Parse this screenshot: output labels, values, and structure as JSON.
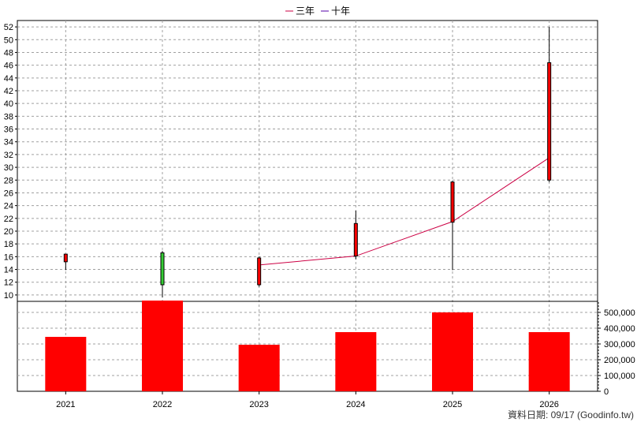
{
  "chart_data": {
    "type": "candlestick+line+bar",
    "legend": {
      "placement": "top-center",
      "entries": [
        {
          "label": "三年",
          "color": "#cc0044"
        },
        {
          "label": "十年",
          "color": "#5500aa"
        }
      ]
    },
    "categories": [
      "2021",
      "2022",
      "2023",
      "2024",
      "2025",
      "2026"
    ],
    "price_axis": {
      "range": [
        9,
        53
      ],
      "ticks": [
        10,
        12,
        14,
        16,
        18,
        20,
        22,
        24,
        26,
        28,
        30,
        32,
        34,
        36,
        38,
        40,
        42,
        44,
        46,
        48,
        50,
        52
      ],
      "position": "left"
    },
    "volume_axis": {
      "range": [
        0,
        570000
      ],
      "ticks": [
        0,
        100000,
        200000,
        300000,
        400000,
        500000
      ],
      "tick_labels": [
        "0",
        "100,000",
        "200,000",
        "300,000",
        "400,000",
        "500,000"
      ],
      "position": "right"
    },
    "candles": [
      {
        "x": "2021",
        "open": 15.2,
        "close": 16.4,
        "high": 16.4,
        "low": 13.9,
        "color": "#ff0000"
      },
      {
        "x": "2022",
        "open": 16.6,
        "close": 11.6,
        "high": 16.9,
        "low": 9.6,
        "color": "#33cc33"
      },
      {
        "x": "2023",
        "open": 11.6,
        "close": 15.8,
        "high": 16.0,
        "low": 11.3,
        "color": "#ff0000"
      },
      {
        "x": "2024",
        "open": 16.1,
        "close": 21.2,
        "high": 23.2,
        "low": 15.6,
        "color": "#ff0000"
      },
      {
        "x": "2025",
        "open": 21.4,
        "close": 27.7,
        "high": 27.9,
        "low": 13.9,
        "color": "#ff0000"
      },
      {
        "x": "2026",
        "open": 28.0,
        "close": 46.4,
        "high": 52.0,
        "low": 27.7,
        "color": "#ff0000"
      }
    ],
    "series": [
      {
        "name": "三年",
        "color": "#cc0044",
        "points": [
          {
            "x": "2023",
            "y": 14.7
          },
          {
            "x": "2024",
            "y": 16.1
          },
          {
            "x": "2025",
            "y": 21.5
          },
          {
            "x": "2026",
            "y": 31.5
          }
        ]
      }
    ],
    "volume": [
      345000,
      575000,
      295000,
      375000,
      500000,
      375000
    ],
    "volume_color": "#ff0000",
    "grid": true
  },
  "source_label": "資料日期: 09/17  (Goodinfo.tw)"
}
